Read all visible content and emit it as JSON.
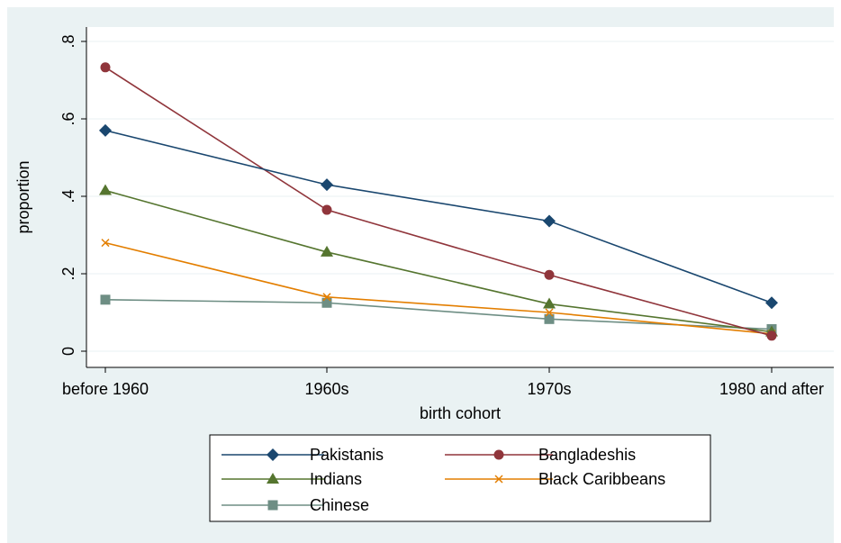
{
  "chart_data": {
    "type": "line",
    "xlabel": "birth cohort",
    "ylabel": "proportion",
    "categories": [
      "before 1960",
      "1960s",
      "1970s",
      "1980 and after"
    ],
    "ylim": [
      0,
      0.8
    ],
    "yticks": [
      0,
      0.2,
      0.4,
      0.6,
      0.8
    ],
    "ytick_labels": [
      "0",
      ".2",
      ".4",
      ".6",
      ".8"
    ],
    "grid": true,
    "legend_position": "bottom",
    "series": [
      {
        "name": "Pakistanis",
        "color": "#1a476f",
        "marker": "diamond",
        "values": [
          0.57,
          0.43,
          0.336,
          0.125
        ]
      },
      {
        "name": "Bangladeshis",
        "color": "#90353b",
        "marker": "circle",
        "values": [
          0.733,
          0.365,
          0.197,
          0.04
        ]
      },
      {
        "name": "Indians",
        "color": "#55752f",
        "marker": "triangle",
        "values": [
          0.415,
          0.256,
          0.122,
          0.05
        ]
      },
      {
        "name": "Black Caribbeans",
        "color": "#e37e00",
        "marker": "x",
        "values": [
          0.28,
          0.14,
          0.1,
          0.045
        ]
      },
      {
        "name": "Chinese",
        "color": "#6e8e84",
        "marker": "square",
        "values": [
          0.133,
          0.125,
          0.083,
          0.057
        ]
      }
    ]
  },
  "colors": {
    "outer_background": "#eaf2f3",
    "plot_background": "#ffffff",
    "grid": "#eaf2f3"
  }
}
